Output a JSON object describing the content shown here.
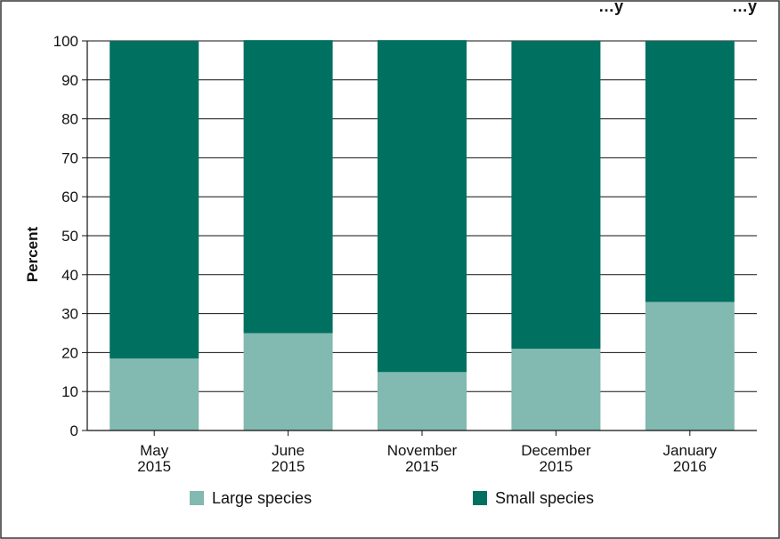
{
  "chart_data": {
    "type": "bar",
    "stacked": true,
    "categories": [
      "May\n2015",
      "June\n2015",
      "November\n2015",
      "December\n2015",
      "January\n2016"
    ],
    "series": [
      {
        "name": "Large species",
        "values": [
          18.5,
          25,
          15,
          21,
          33
        ],
        "color": "#82b9b0"
      },
      {
        "name": "Small species",
        "values": [
          81.5,
          75.2,
          85.2,
          79,
          67
        ],
        "color": "#007060"
      }
    ],
    "title": "",
    "xlabel": "",
    "ylabel": "Percent",
    "ylim": [
      0,
      100
    ],
    "yticks": [
      0,
      10,
      20,
      30,
      40,
      50,
      60,
      70,
      80,
      90,
      100
    ],
    "grid": true,
    "legend_position": "bottom"
  }
}
